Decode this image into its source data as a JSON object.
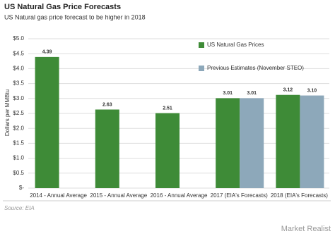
{
  "chart_data": {
    "type": "bar",
    "title": "US Natural Gas Price Forecasts",
    "subtitle": "US Natural gas price forecast to be higher in 2018",
    "y_label": "Dollars per MMBtu",
    "source": "Source: EIA",
    "watermark": "Market Realist",
    "categories": [
      "2014 - Annual Average",
      "2015 - Annual Average",
      "2016 - Annual Average",
      "2017 (EIA's Forecasts)",
      "2018 (EIA's Forecasts)"
    ],
    "series": [
      {
        "name": "US Natural Gas Prices",
        "color": "#3e8b37",
        "values": [
          4.39,
          2.63,
          2.51,
          3.01,
          3.12
        ],
        "value_labels": [
          "4.39",
          "2.63",
          "2.51",
          "3.01",
          "3.12"
        ]
      },
      {
        "name": "Previous Estimates (November STEO)",
        "color": "#8da8ba",
        "values": [
          null,
          null,
          null,
          3.01,
          3.1
        ],
        "value_labels": [
          null,
          null,
          null,
          "3.01",
          "3.10"
        ]
      }
    ],
    "ylim": [
      0,
      5
    ],
    "yticks": [
      {
        "value": 0,
        "label": "$-"
      },
      {
        "value": 0.5,
        "label": "$0.5"
      },
      {
        "value": 1,
        "label": "$1.0"
      },
      {
        "value": 1.5,
        "label": "$1.5"
      },
      {
        "value": 2,
        "label": "$2.0"
      },
      {
        "value": 2.5,
        "label": "$2.5"
      },
      {
        "value": 3,
        "label": "$3.0"
      },
      {
        "value": 3.5,
        "label": "$3.5"
      },
      {
        "value": 4,
        "label": "$4.0"
      },
      {
        "value": 4.5,
        "label": "$4.5"
      },
      {
        "value": 5,
        "label": "$5.0"
      }
    ],
    "grid": true
  }
}
